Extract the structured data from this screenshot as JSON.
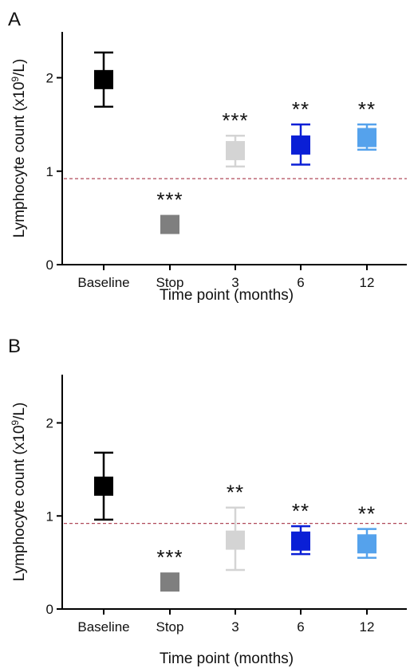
{
  "chart_data": [
    {
      "type": "scatter",
      "panel_label": "A",
      "categories": [
        "Baseline",
        "Stop",
        "3",
        "6",
        "12"
      ],
      "values": [
        1.98,
        0.43,
        1.22,
        1.28,
        1.36
      ],
      "error_upper": [
        2.27,
        0.43,
        1.38,
        1.5,
        1.5
      ],
      "error_lower": [
        1.69,
        0.43,
        1.05,
        1.07,
        1.23
      ],
      "significance": [
        "",
        "***",
        "***",
        "**",
        "**"
      ],
      "marker_colors": [
        "#000000",
        "#7f7f7f",
        "#d4d4d4",
        "#0a1fd6",
        "#55a2ec"
      ],
      "xlabel": "Time point (months)",
      "ylabel_main": "Lymphocyte count (x10",
      "ylabel_sup": "9",
      "ylabel_end": "/L)",
      "ylim": [
        0,
        2.5
      ],
      "yticks": [
        0,
        1,
        2
      ],
      "reference_line": 0.92,
      "reference_line_color": "#b04a5a",
      "grid": false
    },
    {
      "type": "scatter",
      "panel_label": "B",
      "categories": [
        "Baseline",
        "Stop",
        "3",
        "6",
        "12"
      ],
      "values": [
        1.32,
        0.29,
        0.74,
        0.73,
        0.7
      ],
      "error_upper": [
        1.68,
        0.29,
        1.09,
        0.89,
        0.86
      ],
      "error_lower": [
        0.96,
        0.29,
        0.42,
        0.59,
        0.55
      ],
      "significance": [
        "",
        "***",
        "**",
        "**",
        "**"
      ],
      "marker_colors": [
        "#000000",
        "#7f7f7f",
        "#d4d4d4",
        "#0a1fd6",
        "#55a2ec"
      ],
      "xlabel": "Time point (months)",
      "ylabel_main": "Lymphocyte count (x10",
      "ylabel_sup": "9",
      "ylabel_end": "/L)",
      "ylim": [
        0,
        2.5
      ],
      "yticks": [
        0,
        1,
        2
      ],
      "reference_line": 0.92,
      "reference_line_color": "#b04a5a",
      "grid": false
    }
  ]
}
